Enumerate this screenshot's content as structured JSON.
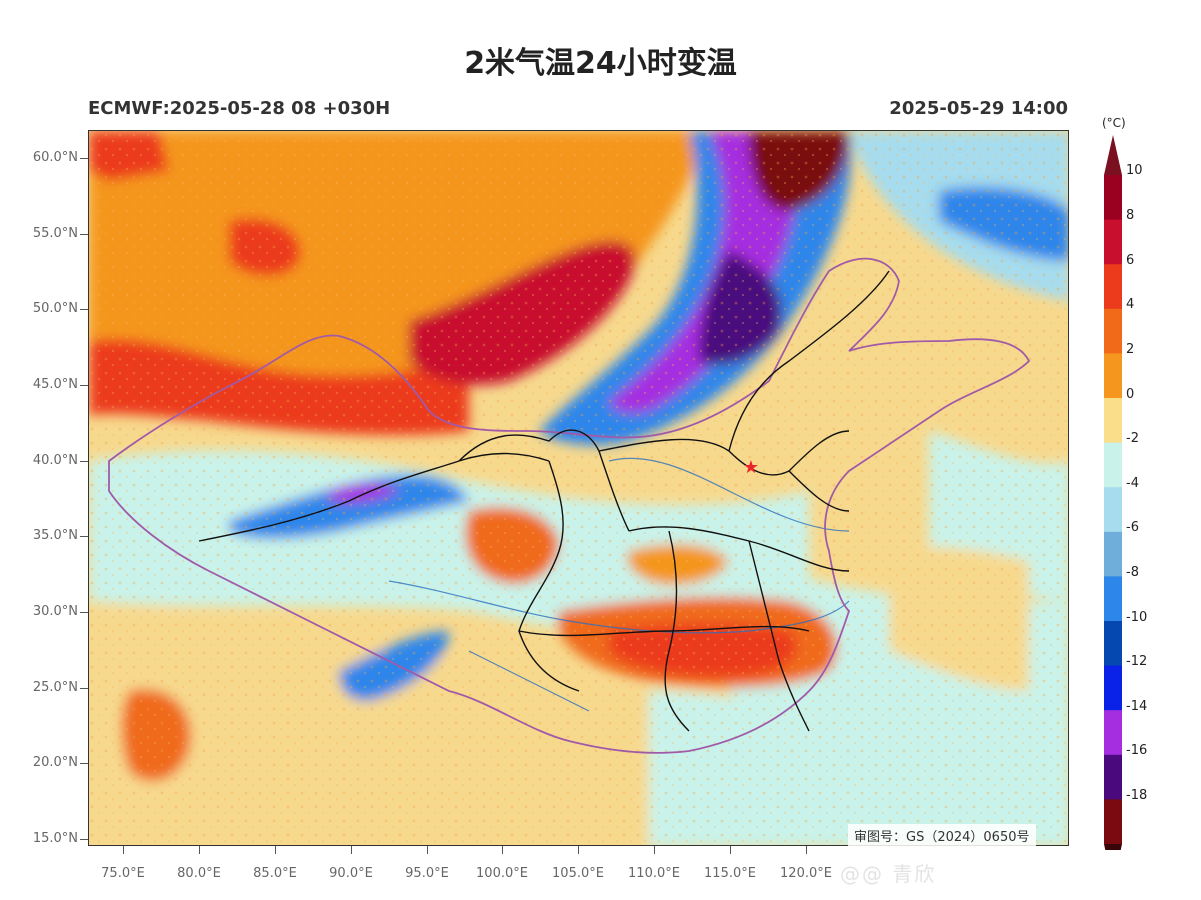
{
  "title": "2米气温24小时变温",
  "subtitle_left": "ECMWF:2025-05-28 08 +030H",
  "subtitle_right": "2025-05-29 14:00",
  "approval_number": "审图号：GS（2024）0650号",
  "watermark": "@@ 青欣",
  "map_features": {
    "capital_marker": "star-icon",
    "marker_color": "#e8262b"
  },
  "axes": {
    "lat_labels": [
      "60.0°N",
      "55.0°N",
      "50.0°N",
      "45.0°N",
      "40.0°N",
      "35.0°N",
      "30.0°N",
      "25.0°N",
      "20.0°N",
      "15.0°N"
    ],
    "lon_labels": [
      "75.0°E",
      "80.0°E",
      "85.0°E",
      "90.0°E",
      "95.0°E",
      "100.0°E",
      "105.0°E",
      "110.0°E",
      "115.0°E",
      "120.0°E"
    ]
  },
  "colorbar": {
    "unit": "(°C)",
    "labels": [
      "10",
      "8",
      "6",
      "4",
      "2",
      "0",
      "-2",
      "-4",
      "-6",
      "-8",
      "-10",
      "-12",
      "-14",
      "-16",
      "-18"
    ],
    "colors": [
      "#9a0020",
      "#c8102e",
      "#ec3a1c",
      "#f06a1a",
      "#f5961f",
      "#fbde8a",
      "#c9f3ea",
      "#a6dcee",
      "#6faedb",
      "#2d86ea",
      "#0549b0",
      "#0a22e8",
      "#a52ee0",
      "#4a0a7e",
      "#7a0a10"
    ]
  }
}
